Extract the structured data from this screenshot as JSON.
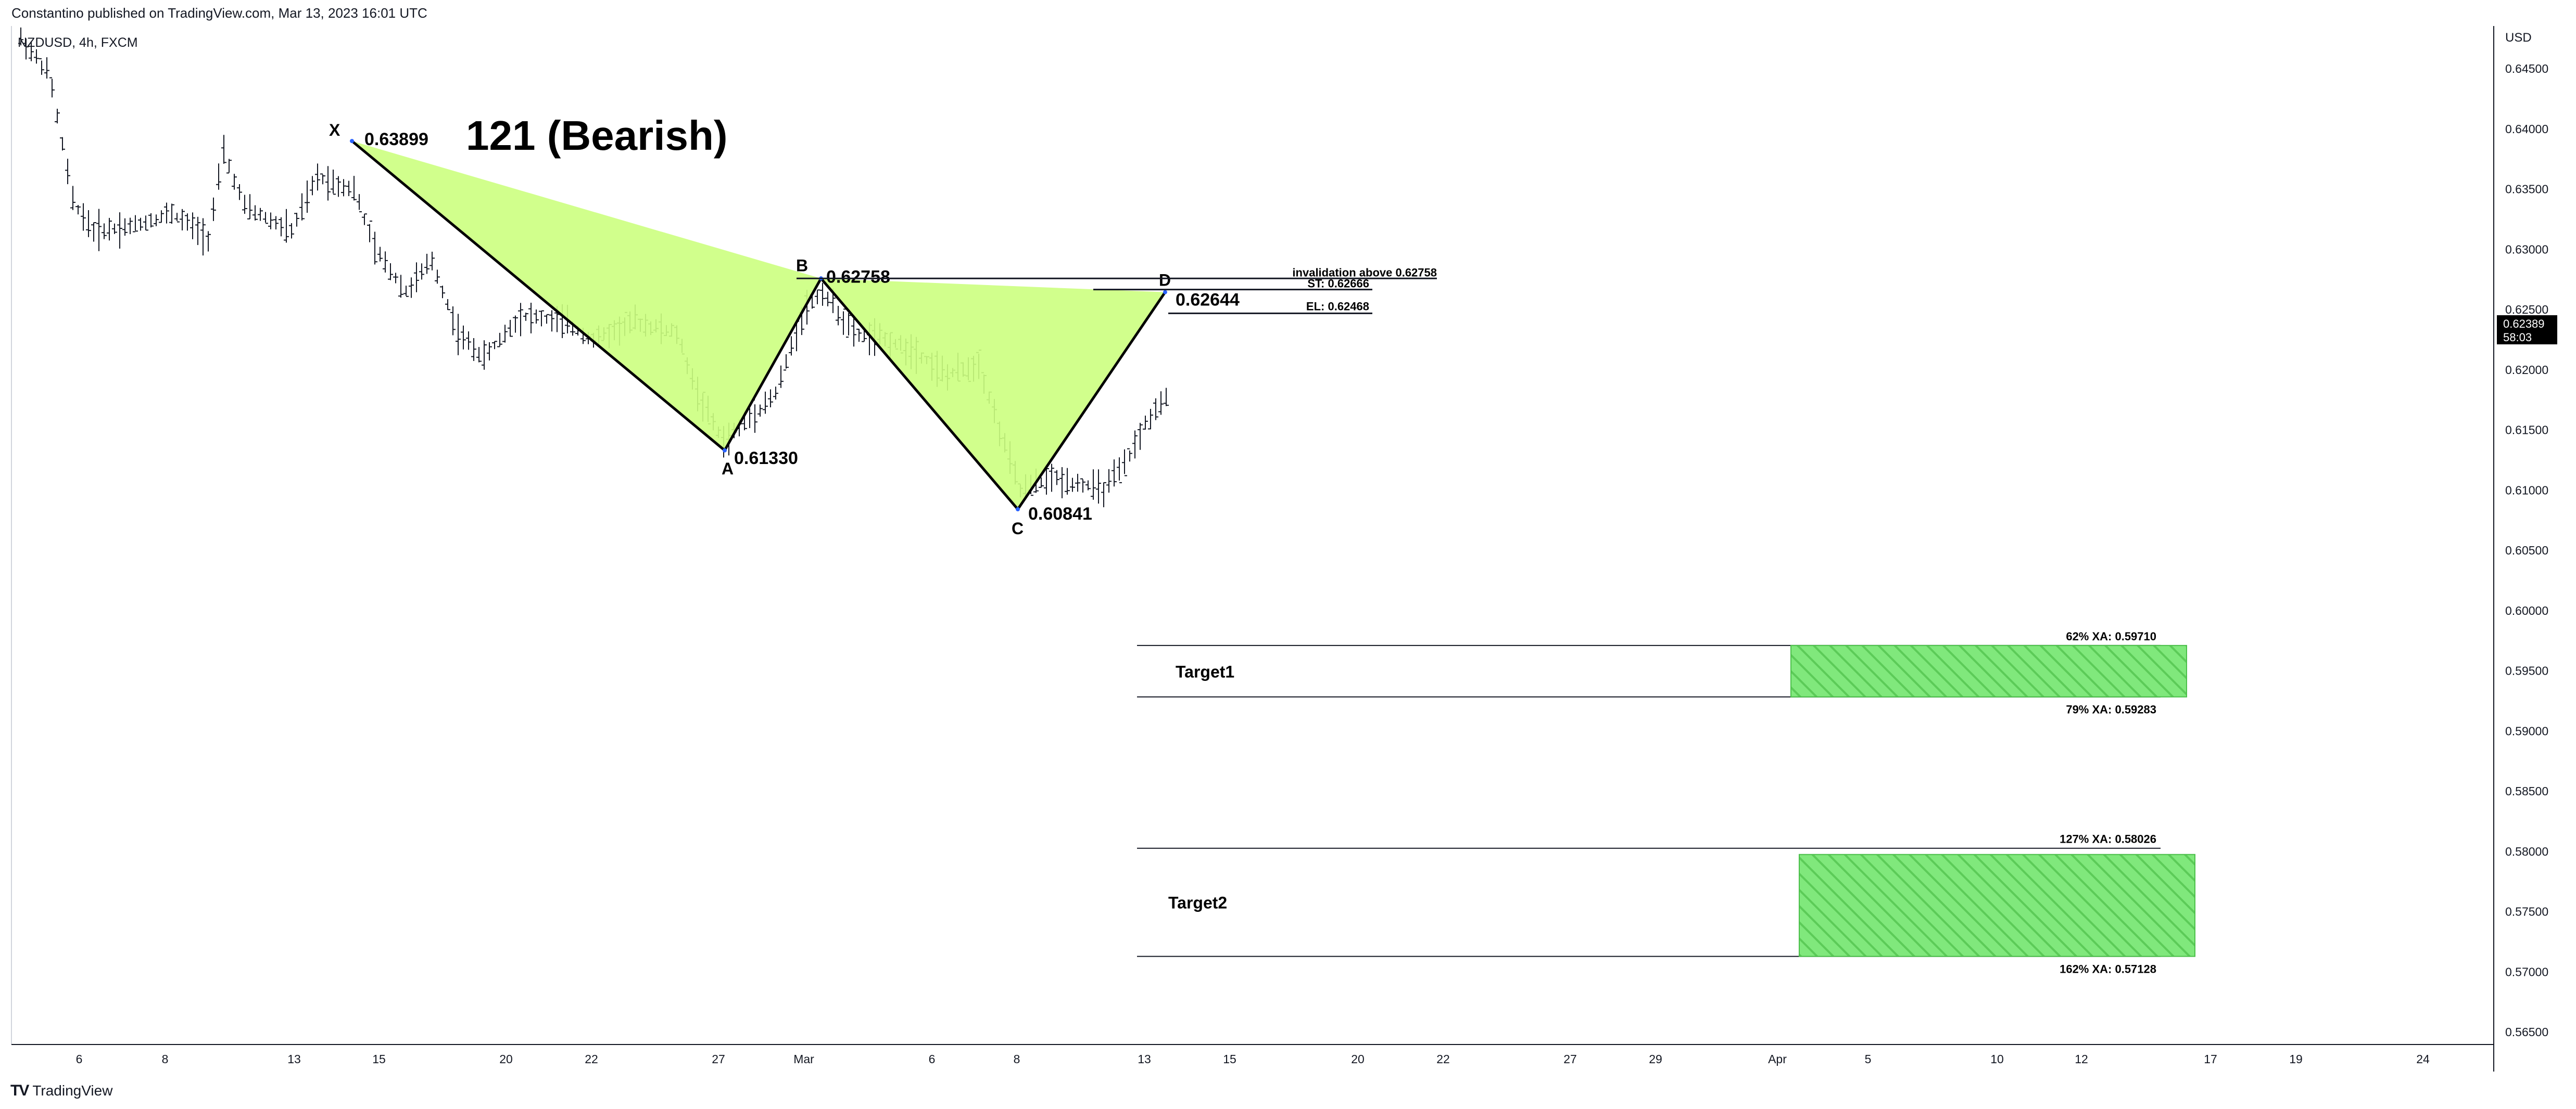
{
  "header": {
    "published": "Constantino published on TradingView.com, Mar 13, 2023 16:01 UTC",
    "symbol": "NZDUSD, 4h, FXCM"
  },
  "branding": {
    "logo_icon": "tradingview-logo-icon",
    "label": "TradingView"
  },
  "price_axis": {
    "currency": "USD",
    "ticks": [
      "0.64500",
      "0.64000",
      "0.63500",
      "0.63000",
      "0.62500",
      "0.62000",
      "0.61500",
      "0.61000",
      "0.60500",
      "0.60000",
      "0.59500",
      "0.59000",
      "0.58500",
      "0.58000",
      "0.57500",
      "0.57000",
      "0.56500"
    ],
    "last_price": "0.62389",
    "countdown": "58:03",
    "last_price_bg": "#000000"
  },
  "time_axis": {
    "ticks": [
      "6",
      "8",
      "13",
      "15",
      "20",
      "22",
      "27",
      "Mar",
      "6",
      "8",
      "13",
      "15",
      "20",
      "22",
      "27",
      "29",
      "Apr",
      "5",
      "10",
      "12",
      "17",
      "19",
      "24"
    ]
  },
  "chart_data": {
    "type": "line",
    "title": "121 (Bearish)",
    "series": [],
    "pattern_points": [
      {
        "label": "X",
        "date": "Feb 14",
        "value": 0.63899,
        "price_label": "0.63899"
      },
      {
        "label": "A",
        "date": "Feb 27",
        "value": 0.6133,
        "price_label": "0.61330"
      },
      {
        "label": "B",
        "date": "Mar 1",
        "value": 0.62758,
        "price_label": "0.62758"
      },
      {
        "label": "C",
        "date": "Mar 8",
        "value": 0.60841,
        "price_label": "0.60841"
      },
      {
        "label": "D",
        "date": "Mar 13",
        "value": 0.62644,
        "price_label": "0.62644"
      }
    ],
    "levels": {
      "invalidation": {
        "label": "invalidation above 0.62758",
        "value": 0.62758
      },
      "stop": {
        "label": "ST: 0.62666",
        "value": 0.62666
      },
      "entry": {
        "label": "EL: 0.62468",
        "value": 0.62468
      }
    },
    "targets": [
      {
        "name": "Target1",
        "upper_label": "62% XA: 0.59710",
        "upper": 0.5971,
        "lower_label": "79% XA: 0.59283",
        "lower": 0.59283
      },
      {
        "name": "Target2",
        "upper_label": "127% XA: 0.58026",
        "upper": 0.58026,
        "lower_label": "162% XA: 0.57128",
        "lower": 0.57128
      }
    ],
    "ylim": [
      0.5635,
      0.6495
    ],
    "colors": {
      "pattern_fill": "#ccff80",
      "target_fill": "#7ee07a",
      "target_hatch": "#4bbf4a",
      "bars": "#131722"
    }
  }
}
